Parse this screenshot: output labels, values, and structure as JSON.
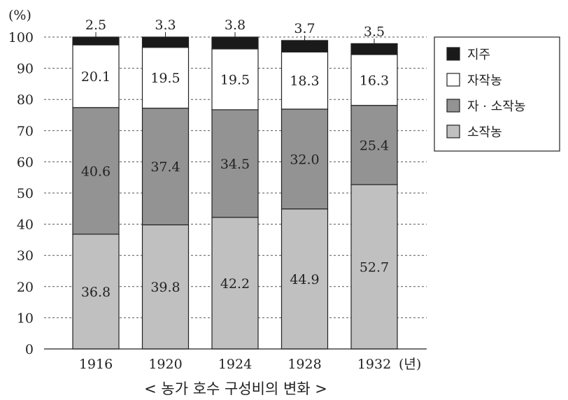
{
  "chart_data": {
    "type": "bar",
    "stacked": true,
    "title": "< 농가 호수 구성비의 변화 >",
    "ylabel": "(%)",
    "xunit": "(년)",
    "ylim": [
      0,
      100
    ],
    "yticks": [
      0,
      10,
      20,
      30,
      40,
      50,
      60,
      70,
      80,
      90,
      100
    ],
    "grid": "dashed horizontal",
    "legend_position": "top-right",
    "categories": [
      "1916",
      "1920",
      "1924",
      "1928",
      "1932"
    ],
    "series": [
      {
        "name": "소작농",
        "color": "#c0c0c0",
        "values": [
          36.8,
          39.8,
          42.2,
          44.9,
          52.7
        ]
      },
      {
        "name": "자 · 소작농",
        "color": "#939393",
        "values": [
          40.6,
          37.4,
          34.5,
          32.0,
          25.4
        ]
      },
      {
        "name": "자작농",
        "color": "#ffffff",
        "values": [
          20.1,
          19.5,
          19.5,
          18.3,
          16.3
        ]
      },
      {
        "name": "지주",
        "color": "#1a1a1a",
        "values": [
          2.5,
          3.3,
          3.8,
          3.7,
          3.5
        ]
      }
    ],
    "legend_order": [
      "지주",
      "자작농",
      "자 · 소작농",
      "소작농"
    ]
  }
}
